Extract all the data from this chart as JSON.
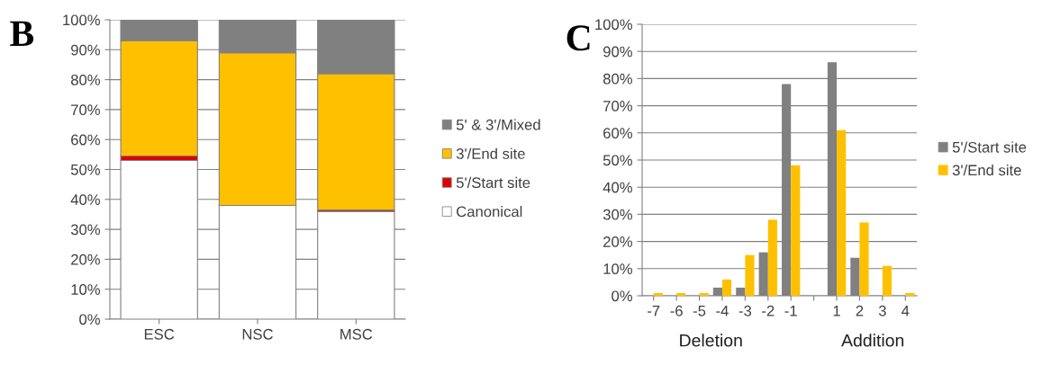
{
  "chart_data": [
    {
      "type": "bar",
      "title": "B",
      "stacked": true,
      "categories": [
        "ESC",
        "NSC",
        "MSC"
      ],
      "series": [
        {
          "name": "Canonical",
          "color": "#ffffff",
          "values": [
            53,
            38,
            36
          ]
        },
        {
          "name": "5'/Start site",
          "color": "#e00000",
          "values": [
            1.5,
            0,
            0.5
          ]
        },
        {
          "name": "3'/End site",
          "color": "#ffc000",
          "values": [
            38.5,
            51,
            45.5
          ]
        },
        {
          "name": "5' & 3'/Mixed",
          "color": "#808080",
          "values": [
            7,
            11,
            18
          ]
        }
      ],
      "ylim": [
        0,
        100
      ],
      "yticks": [
        {
          "value": 0,
          "label": "0%"
        },
        {
          "value": 10,
          "label": "10%"
        },
        {
          "value": 20,
          "label": "20%"
        },
        {
          "value": 30,
          "label": "30%"
        },
        {
          "value": 40,
          "label": "40%"
        },
        {
          "value": 50,
          "label": "50%"
        },
        {
          "value": 60,
          "label": "60%"
        },
        {
          "value": 70,
          "label": "70%"
        },
        {
          "value": 80,
          "label": "80%"
        },
        {
          "value": 90,
          "label": "90%"
        },
        {
          "value": 100,
          "label": "100%"
        }
      ],
      "grid": "y",
      "legend": "right"
    },
    {
      "type": "bar",
      "title": "C",
      "categories": [
        "-7",
        "-6",
        "-5",
        "-4",
        "-3",
        "-2",
        "-1",
        null,
        "1",
        "2",
        "3",
        "4"
      ],
      "series": [
        {
          "name": "5'/Start site",
          "color": "#808080",
          "values": [
            0,
            0,
            0,
            3,
            3,
            16,
            78,
            null,
            86,
            14,
            0,
            0
          ]
        },
        {
          "name": "3'/End site",
          "color": "#ffc000",
          "values": [
            1,
            1,
            1,
            6,
            15,
            28,
            48,
            null,
            61,
            27,
            11,
            1
          ]
        }
      ],
      "ylim": [
        0,
        100
      ],
      "yticks": [
        {
          "value": 0,
          "label": "0%"
        },
        {
          "value": 10,
          "label": "10%"
        },
        {
          "value": 20,
          "label": "20%"
        },
        {
          "value": 30,
          "label": "30%"
        },
        {
          "value": 40,
          "label": "40%"
        },
        {
          "value": 50,
          "label": "50%"
        },
        {
          "value": 60,
          "label": "60%"
        },
        {
          "value": 70,
          "label": "70%"
        },
        {
          "value": 80,
          "label": "80%"
        },
        {
          "value": 90,
          "label": "90%"
        },
        {
          "value": 100,
          "label": "100%"
        }
      ],
      "grid": "y",
      "legend": "right",
      "annotations": [
        "Deletion",
        "Addition"
      ]
    }
  ]
}
